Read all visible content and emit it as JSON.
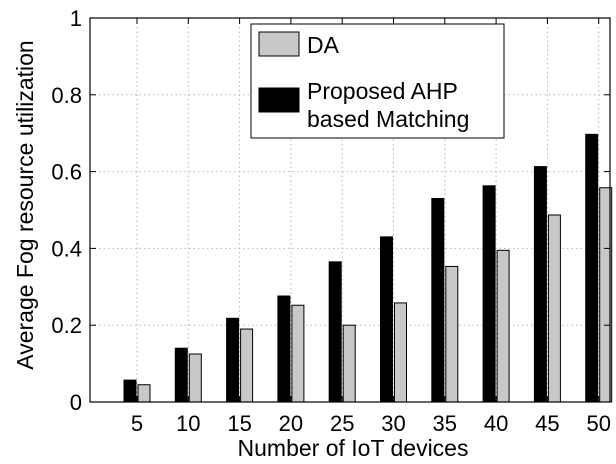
{
  "chart_data": {
    "type": "bar",
    "categories": [
      "5",
      "10",
      "15",
      "20",
      "25",
      "30",
      "35",
      "40",
      "45",
      "50"
    ],
    "series": [
      {
        "name": "DA",
        "color": "#c8c8c8",
        "values": [
          0.045,
          0.125,
          0.19,
          0.252,
          0.2,
          0.258,
          0.353,
          0.395,
          0.487,
          0.558
        ]
      },
      {
        "name": "Proposed AHP based Matching",
        "color": "#000000",
        "values": [
          0.057,
          0.14,
          0.218,
          0.276,
          0.365,
          0.43,
          0.53,
          0.563,
          0.613,
          0.697
        ]
      }
    ],
    "title": "",
    "xlabel": "Number of IoT devices",
    "ylabel": "Average Fog resource utilization",
    "ylim": [
      0,
      1
    ],
    "yticks": [
      "0",
      "0.2",
      "0.4",
      "0.6",
      "0.8",
      "1"
    ],
    "grid": true,
    "legend_position": "top-right",
    "legend_lines": [
      [
        "DA"
      ],
      [
        "Proposed AHP",
        "based Matching"
      ]
    ]
  }
}
